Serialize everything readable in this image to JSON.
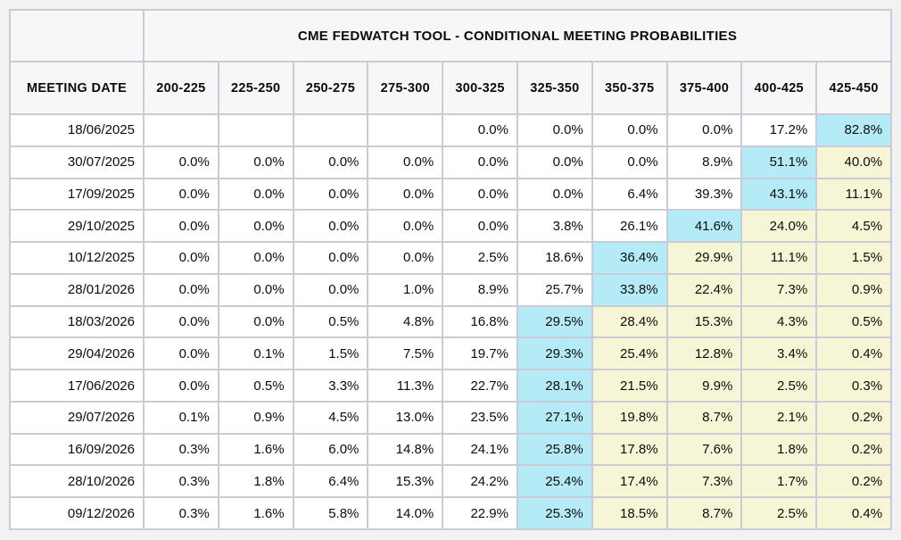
{
  "colors": {
    "page_bg": "#f2f2f3",
    "header_bg": "#f7f7f8",
    "cell_border": "#c8ccd6",
    "outer_border": "#b2b6c2",
    "highlight_cyan": "#b5ebf6",
    "highlight_yellow": "#f6f6d7"
  },
  "chart_data": {
    "type": "table",
    "title": "CME FEDWATCH TOOL - CONDITIONAL MEETING PROBABILITIES",
    "corner_label": "",
    "columns": [
      "MEETING DATE",
      "200-225",
      "225-250",
      "250-275",
      "275-300",
      "300-325",
      "325-350",
      "350-375",
      "375-400",
      "400-425",
      "425-450"
    ],
    "highlight_codes": {
      "c": "cyan-modal-cell",
      "y": "yellow-cell",
      "": "plain-cell"
    },
    "rows": [
      {
        "date": "18/06/2025",
        "values": [
          "",
          "",
          "",
          "",
          "0.0%",
          "0.0%",
          "0.0%",
          "0.0%",
          "17.2%",
          "82.8%"
        ],
        "marks": [
          "",
          "",
          "",
          "",
          "",
          "",
          "",
          "",
          "",
          "c"
        ]
      },
      {
        "date": "30/07/2025",
        "values": [
          "0.0%",
          "0.0%",
          "0.0%",
          "0.0%",
          "0.0%",
          "0.0%",
          "0.0%",
          "8.9%",
          "51.1%",
          "40.0%"
        ],
        "marks": [
          "",
          "",
          "",
          "",
          "",
          "",
          "",
          "",
          "c",
          "y"
        ]
      },
      {
        "date": "17/09/2025",
        "values": [
          "0.0%",
          "0.0%",
          "0.0%",
          "0.0%",
          "0.0%",
          "0.0%",
          "6.4%",
          "39.3%",
          "43.1%",
          "11.1%"
        ],
        "marks": [
          "",
          "",
          "",
          "",
          "",
          "",
          "",
          "",
          "c",
          "y"
        ]
      },
      {
        "date": "29/10/2025",
        "values": [
          "0.0%",
          "0.0%",
          "0.0%",
          "0.0%",
          "0.0%",
          "3.8%",
          "26.1%",
          "41.6%",
          "24.0%",
          "4.5%"
        ],
        "marks": [
          "",
          "",
          "",
          "",
          "",
          "",
          "",
          "c",
          "y",
          "y"
        ]
      },
      {
        "date": "10/12/2025",
        "values": [
          "0.0%",
          "0.0%",
          "0.0%",
          "0.0%",
          "2.5%",
          "18.6%",
          "36.4%",
          "29.9%",
          "11.1%",
          "1.5%"
        ],
        "marks": [
          "",
          "",
          "",
          "",
          "",
          "",
          "c",
          "y",
          "y",
          "y"
        ]
      },
      {
        "date": "28/01/2026",
        "values": [
          "0.0%",
          "0.0%",
          "0.0%",
          "1.0%",
          "8.9%",
          "25.7%",
          "33.8%",
          "22.4%",
          "7.3%",
          "0.9%"
        ],
        "marks": [
          "",
          "",
          "",
          "",
          "",
          "",
          "c",
          "y",
          "y",
          "y"
        ]
      },
      {
        "date": "18/03/2026",
        "values": [
          "0.0%",
          "0.0%",
          "0.5%",
          "4.8%",
          "16.8%",
          "29.5%",
          "28.4%",
          "15.3%",
          "4.3%",
          "0.5%"
        ],
        "marks": [
          "",
          "",
          "",
          "",
          "",
          "c",
          "y",
          "y",
          "y",
          "y"
        ]
      },
      {
        "date": "29/04/2026",
        "values": [
          "0.0%",
          "0.1%",
          "1.5%",
          "7.5%",
          "19.7%",
          "29.3%",
          "25.4%",
          "12.8%",
          "3.4%",
          "0.4%"
        ],
        "marks": [
          "",
          "",
          "",
          "",
          "",
          "c",
          "y",
          "y",
          "y",
          "y"
        ]
      },
      {
        "date": "17/06/2026",
        "values": [
          "0.0%",
          "0.5%",
          "3.3%",
          "11.3%",
          "22.7%",
          "28.1%",
          "21.5%",
          "9.9%",
          "2.5%",
          "0.3%"
        ],
        "marks": [
          "",
          "",
          "",
          "",
          "",
          "c",
          "y",
          "y",
          "y",
          "y"
        ]
      },
      {
        "date": "29/07/2026",
        "values": [
          "0.1%",
          "0.9%",
          "4.5%",
          "13.0%",
          "23.5%",
          "27.1%",
          "19.8%",
          "8.7%",
          "2.1%",
          "0.2%"
        ],
        "marks": [
          "",
          "",
          "",
          "",
          "",
          "c",
          "y",
          "y",
          "y",
          "y"
        ]
      },
      {
        "date": "16/09/2026",
        "values": [
          "0.3%",
          "1.6%",
          "6.0%",
          "14.8%",
          "24.1%",
          "25.8%",
          "17.8%",
          "7.6%",
          "1.8%",
          "0.2%"
        ],
        "marks": [
          "",
          "",
          "",
          "",
          "",
          "c",
          "y",
          "y",
          "y",
          "y"
        ]
      },
      {
        "date": "28/10/2026",
        "values": [
          "0.3%",
          "1.8%",
          "6.4%",
          "15.3%",
          "24.2%",
          "25.4%",
          "17.4%",
          "7.3%",
          "1.7%",
          "0.2%"
        ],
        "marks": [
          "",
          "",
          "",
          "",
          "",
          "c",
          "y",
          "y",
          "y",
          "y"
        ]
      },
      {
        "date": "09/12/2026",
        "values": [
          "0.3%",
          "1.6%",
          "5.8%",
          "14.0%",
          "22.9%",
          "25.3%",
          "18.5%",
          "8.7%",
          "2.5%",
          "0.4%"
        ],
        "marks": [
          "",
          "",
          "",
          "",
          "",
          "c",
          "y",
          "y",
          "y",
          "y"
        ]
      }
    ]
  }
}
